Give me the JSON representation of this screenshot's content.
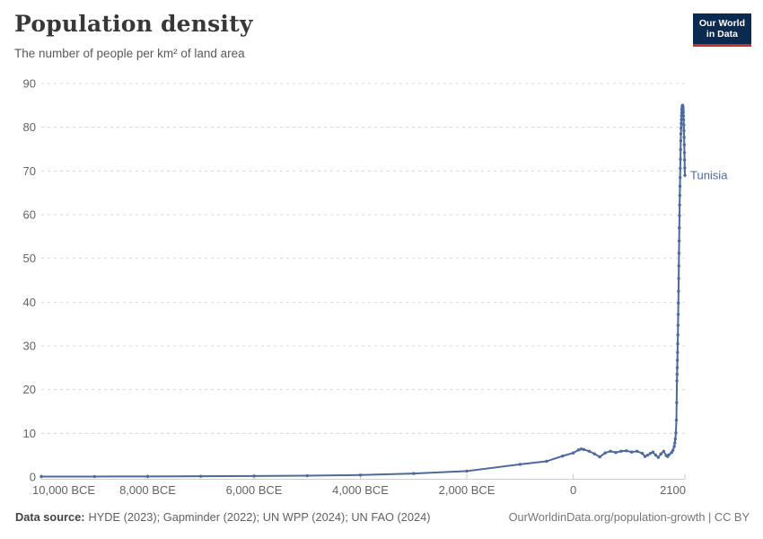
{
  "header": {
    "title": "Population density",
    "subtitle": "The number of people per km² of land area"
  },
  "logo": {
    "line1": "Our World",
    "line2": "in Data",
    "bg_color": "#0a2a50",
    "accent_color": "#c8322b"
  },
  "footer": {
    "data_source_label": "Data source:",
    "data_source_value": "HYDE (2023); Gapminder (2022); UN WPP (2024); UN FAO (2024)",
    "attribution": "OurWorldinData.org/population-growth | CC BY"
  },
  "chart_data": {
    "type": "line",
    "title": "Population density",
    "subtitle": "The number of people per km² of land area",
    "unit": "people per km² of land area",
    "xlabel": "",
    "ylabel": "",
    "xlim": [
      -10000,
      2100
    ],
    "ylim": [
      0,
      90
    ],
    "grid": "horizontal-dashed",
    "legend_position": "end-of-line-label",
    "yticks": [
      0,
      10,
      20,
      30,
      40,
      50,
      60,
      70,
      80,
      90
    ],
    "xticks": [
      {
        "value": -10000,
        "label": "10,000 BCE"
      },
      {
        "value": -8000,
        "label": "8,000 BCE"
      },
      {
        "value": -6000,
        "label": "6,000 BCE"
      },
      {
        "value": -4000,
        "label": "4,000 BCE"
      },
      {
        "value": -2000,
        "label": "2,000 BCE"
      },
      {
        "value": 0,
        "label": "0"
      },
      {
        "value": 2100,
        "label": "2100"
      }
    ],
    "series": [
      {
        "name": "Tunisia",
        "color": "#4C6A9C",
        "points": [
          [
            -10000,
            0.1
          ],
          [
            -9000,
            0.11
          ],
          [
            -8000,
            0.13
          ],
          [
            -7000,
            0.17
          ],
          [
            -6000,
            0.22
          ],
          [
            -5000,
            0.3
          ],
          [
            -4000,
            0.45
          ],
          [
            -3000,
            0.8
          ],
          [
            -2000,
            1.35
          ],
          [
            -1000,
            2.9
          ],
          [
            -500,
            3.6
          ],
          [
            -200,
            4.8
          ],
          [
            0,
            5.5
          ],
          [
            100,
            6.2
          ],
          [
            150,
            6.4
          ],
          [
            200,
            6.3
          ],
          [
            300,
            5.9
          ],
          [
            400,
            5.3
          ],
          [
            500,
            4.6
          ],
          [
            600,
            5.5
          ],
          [
            700,
            5.9
          ],
          [
            800,
            5.6
          ],
          [
            900,
            5.9
          ],
          [
            1000,
            6.0
          ],
          [
            1100,
            5.7
          ],
          [
            1200,
            5.9
          ],
          [
            1300,
            5.4
          ],
          [
            1350,
            4.7
          ],
          [
            1400,
            5.0
          ],
          [
            1450,
            5.4
          ],
          [
            1500,
            5.7
          ],
          [
            1550,
            5.0
          ],
          [
            1600,
            4.5
          ],
          [
            1650,
            5.3
          ],
          [
            1700,
            5.9
          ],
          [
            1750,
            4.9
          ],
          [
            1775,
            4.7
          ],
          [
            1800,
            5.1
          ],
          [
            1850,
            5.6
          ],
          [
            1875,
            6.1
          ],
          [
            1900,
            7.0
          ],
          [
            1910,
            7.8
          ],
          [
            1920,
            8.7
          ],
          [
            1930,
            10.1
          ],
          [
            1940,
            13.0
          ],
          [
            1945,
            17.0
          ],
          [
            1950,
            22.0
          ],
          [
            1953,
            23.5
          ],
          [
            1956,
            25.0
          ],
          [
            1959,
            26.7
          ],
          [
            1962,
            28.5
          ],
          [
            1965,
            30.5
          ],
          [
            1968,
            32.5
          ],
          [
            1971,
            34.7
          ],
          [
            1974,
            37.2
          ],
          [
            1977,
            39.8
          ],
          [
            1980,
            42.5
          ],
          [
            1983,
            45.4
          ],
          [
            1986,
            48.3
          ],
          [
            1989,
            51.2
          ],
          [
            1992,
            54.0
          ],
          [
            1995,
            57.0
          ],
          [
            1998,
            59.8
          ],
          [
            2001,
            62.2
          ],
          [
            2004,
            64.4
          ],
          [
            2007,
            66.5
          ],
          [
            2010,
            68.5
          ],
          [
            2013,
            70.6
          ],
          [
            2016,
            72.7
          ],
          [
            2019,
            74.9
          ],
          [
            2022,
            76.9
          ],
          [
            2025,
            78.5
          ],
          [
            2028,
            79.8
          ],
          [
            2031,
            80.9
          ],
          [
            2034,
            81.8
          ],
          [
            2037,
            82.6
          ],
          [
            2040,
            83.3
          ],
          [
            2043,
            84.0
          ],
          [
            2046,
            84.4
          ],
          [
            2049,
            84.7
          ],
          [
            2052,
            84.9
          ],
          [
            2055,
            85.0
          ],
          [
            2058,
            85.0
          ],
          [
            2061,
            84.8
          ],
          [
            2064,
            84.5
          ],
          [
            2067,
            84.0
          ],
          [
            2070,
            83.4
          ],
          [
            2073,
            82.6
          ],
          [
            2076,
            81.7
          ],
          [
            2079,
            80.5
          ],
          [
            2082,
            79.2
          ],
          [
            2085,
            77.7
          ],
          [
            2088,
            76.0
          ],
          [
            2091,
            74.2
          ],
          [
            2094,
            72.5
          ],
          [
            2097,
            70.7
          ],
          [
            2100,
            69.0
          ]
        ]
      }
    ]
  }
}
